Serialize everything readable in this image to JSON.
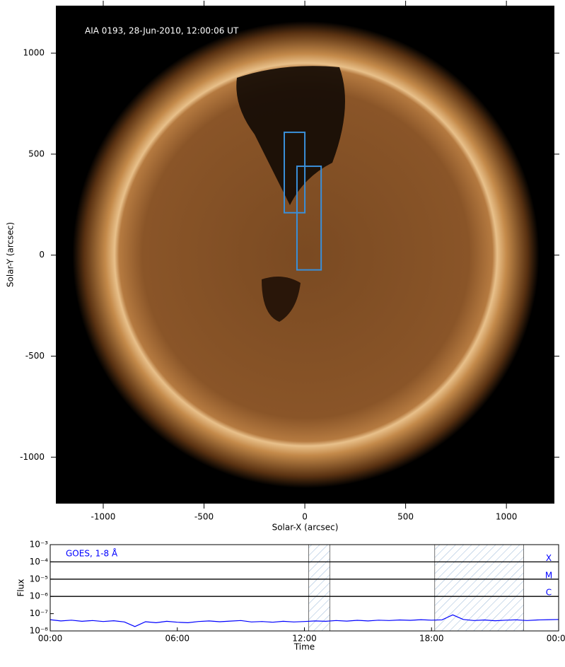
{
  "chart_data": [
    {
      "type": "image",
      "annotation": "AIA 0193, 28-Jun-2010, 12:00:06 UT",
      "xlabel": "Solar-X (arcsec)",
      "ylabel": "Solar-Y (arcsec)",
      "xlim": [
        -1235,
        1238
      ],
      "ylim": [
        -1230,
        1235
      ],
      "xticks": [
        -1000,
        -500,
        0,
        500,
        1000
      ],
      "yticks": [
        -1000,
        -500,
        0,
        500,
        1000
      ],
      "box_color": "#3a8fd9",
      "boxes": [
        {
          "x": [
            -102,
            0
          ],
          "y": [
            210,
            608
          ]
        },
        {
          "x": [
            -39,
            81
          ],
          "y": [
            -73,
            440
          ]
        }
      ]
    },
    {
      "type": "line",
      "annotation": "GOES, 1-8 Å",
      "xlabel": "Time",
      "ylabel": "Flux",
      "ylog": true,
      "xlim": [
        0,
        24
      ],
      "ylim": [
        1e-08,
        0.001
      ],
      "xticks": [
        {
          "value": 0,
          "label": "00:00"
        },
        {
          "value": 6,
          "label": "06:00"
        },
        {
          "value": 12,
          "label": "12:00"
        },
        {
          "value": 18,
          "label": "18:00"
        },
        {
          "value": 24,
          "label": "00:00"
        }
      ],
      "yticks": [
        {
          "value": 1e-08,
          "label": "10⁻⁸"
        },
        {
          "value": 1e-07,
          "label": "10⁻⁷"
        },
        {
          "value": 1e-06,
          "label": "10⁻⁶"
        },
        {
          "value": 1e-05,
          "label": "10⁻⁵"
        },
        {
          "value": 0.0001,
          "label": "10⁻⁴"
        },
        {
          "value": 0.001,
          "label": "10⁻³"
        }
      ],
      "class_levels": [
        {
          "value": 0.0001,
          "label": "X"
        },
        {
          "value": 1e-05,
          "label": "M"
        },
        {
          "value": 1e-06,
          "label": "C"
        }
      ],
      "shaded": [
        [
          12.2,
          13.2
        ],
        [
          18.15,
          22.35
        ]
      ],
      "x": [
        0,
        0.5,
        1,
        1.5,
        2,
        2.5,
        3,
        3.5,
        4,
        4.5,
        5,
        5.5,
        6,
        6.5,
        7,
        7.5,
        8,
        8.5,
        9,
        9.5,
        10,
        10.5,
        11,
        11.5,
        12,
        12.5,
        13,
        13.5,
        14,
        14.5,
        15,
        15.5,
        16,
        16.5,
        17,
        17.5,
        18,
        18.5,
        19,
        19.5,
        20,
        20.5,
        21,
        21.5,
        22,
        22.5,
        23,
        23.5,
        24
      ],
      "series": [
        {
          "name": "GOES 1-8",
          "color": "#0000ff",
          "values": [
            4.5e-08,
            3.8e-08,
            4.2e-08,
            3.6e-08,
            4e-08,
            3.5e-08,
            3.9e-08,
            3.3e-08,
            1.8e-08,
            3.4e-08,
            3e-08,
            3.6e-08,
            3.2e-08,
            3e-08,
            3.5e-08,
            3.8e-08,
            3.4e-08,
            3.7e-08,
            4e-08,
            3.3e-08,
            3.5e-08,
            3.2e-08,
            3.6e-08,
            3.3e-08,
            3.5e-08,
            3.8e-08,
            3.6e-08,
            4e-08,
            3.7e-08,
            4.1e-08,
            3.8e-08,
            4.2e-08,
            4e-08,
            4.3e-08,
            4.1e-08,
            4.5e-08,
            4.2e-08,
            4.4e-08,
            8.5e-08,
            4.6e-08,
            4e-08,
            4.3e-08,
            3.9e-08,
            4.2e-08,
            4.4e-08,
            4e-08,
            4.3e-08,
            4.5e-08,
            4.6e-08
          ]
        }
      ]
    }
  ]
}
